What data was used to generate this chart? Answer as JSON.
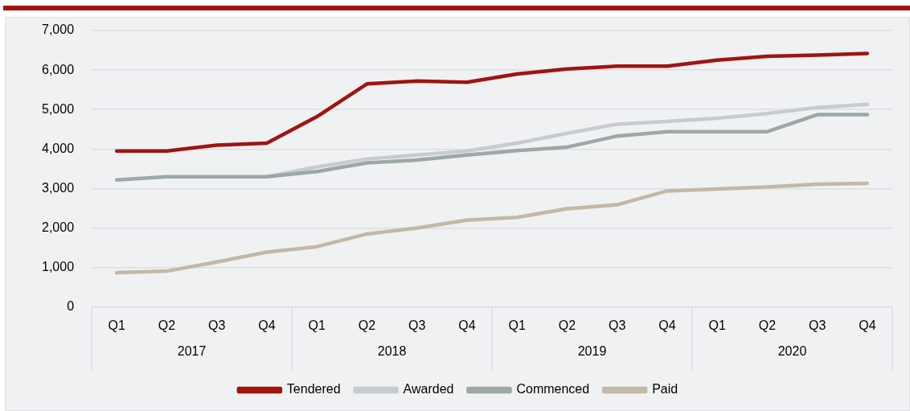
{
  "chart_data": {
    "type": "line",
    "categories": [
      "Q1",
      "Q2",
      "Q3",
      "Q4",
      "Q1",
      "Q2",
      "Q3",
      "Q4",
      "Q1",
      "Q2",
      "Q3",
      "Q4",
      "Q1",
      "Q2",
      "Q3",
      "Q4"
    ],
    "annotations": [
      "2017",
      "2018",
      "2019",
      "2020"
    ],
    "series": [
      {
        "name": "Tendered",
        "color": "#a01410",
        "values": [
          3950,
          3950,
          4100,
          4150,
          4820,
          5650,
          5720,
          5690,
          5900,
          6030,
          6100,
          6100,
          6250,
          6350,
          6380,
          6420
        ]
      },
      {
        "name": "Awarded",
        "color": "#c8cad1",
        "values": [
          null,
          null,
          null,
          3300,
          3550,
          3750,
          3850,
          3950,
          4150,
          4400,
          4630,
          4700,
          4780,
          4900,
          5050,
          5130
        ]
      },
      {
        "name": "Commenced",
        "color": "#9ba8a6",
        "values": [
          3220,
          3300,
          3300,
          3300,
          3430,
          3650,
          3720,
          3850,
          3960,
          4050,
          4330,
          4440,
          4440,
          4440,
          4870,
          4870
        ]
      },
      {
        "name": "Paid",
        "color": "#c4b8a6",
        "values": [
          870,
          910,
          1140,
          1390,
          1530,
          1850,
          2000,
          2200,
          2270,
          2490,
          2590,
          2940,
          2990,
          3040,
          3110,
          3130
        ]
      }
    ],
    "ylim": [
      0,
      7000
    ],
    "yticks": [
      0,
      {
        "value": 1000,
        "label": "1,000"
      },
      {
        "value": 2000,
        "label": "2,000"
      },
      {
        "value": 3000,
        "label": "3,000"
      },
      {
        "value": 4000,
        "label": "4,000"
      },
      {
        "value": 5000,
        "label": "5,000"
      },
      {
        "value": 6000,
        "label": "6,000"
      },
      {
        "value": 7000,
        "label": "7,000"
      }
    ],
    "grid": "y",
    "legend": "bottom",
    "marker": "none",
    "line_style": "solid"
  }
}
